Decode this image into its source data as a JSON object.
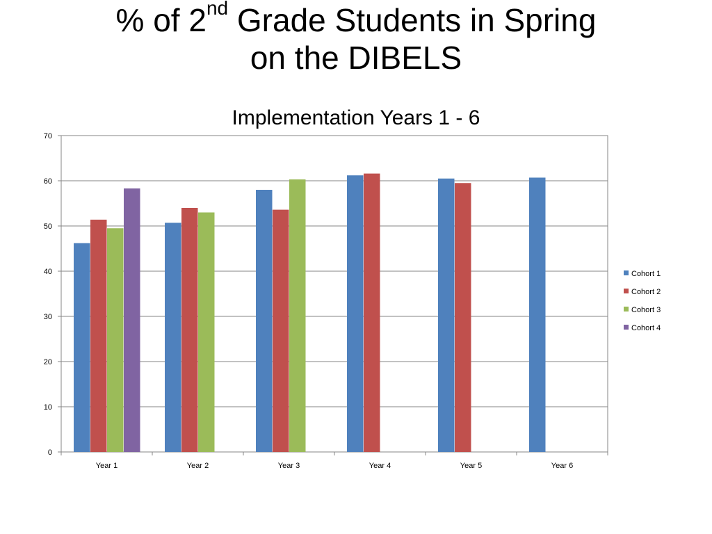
{
  "slide": {
    "title_prefix": "% of 2",
    "title_sup": "nd",
    "title_rest": " Grade Students in Spring",
    "title_line2": "on the DIBELS",
    "subtitle": "Implementation Years 1 - 6"
  },
  "chart_data": {
    "type": "bar",
    "categories": [
      "Year 1",
      "Year 2",
      "Year 3",
      "Year 4",
      "Year 5",
      "Year 6"
    ],
    "series": [
      {
        "name": "Cohort 1",
        "color": "#4F81BD",
        "values": [
          46.2,
          50.7,
          58.0,
          61.2,
          60.5,
          60.7
        ]
      },
      {
        "name": "Cohort 2",
        "color": "#C0504D",
        "values": [
          51.4,
          54.0,
          53.6,
          61.6,
          59.5,
          null
        ]
      },
      {
        "name": "Cohort 3",
        "color": "#9BBB59",
        "values": [
          49.5,
          53.0,
          60.3,
          null,
          null,
          null
        ]
      },
      {
        "name": "Cohort 4",
        "color": "#8064A2",
        "values": [
          58.3,
          null,
          null,
          null,
          null,
          null
        ]
      }
    ],
    "ylim": [
      0,
      70
    ],
    "yticks": [
      0,
      10,
      20,
      30,
      40,
      50,
      60,
      70
    ],
    "grid": true,
    "legend": "right"
  }
}
